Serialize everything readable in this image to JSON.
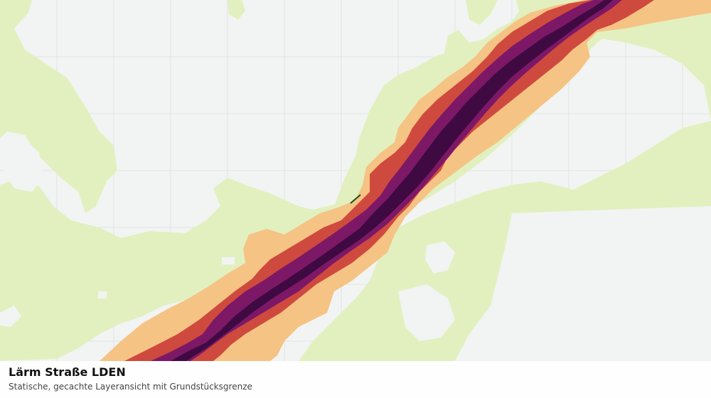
{
  "caption": {
    "title": "Lärm Straße LDEN",
    "subtitle": "Statische, gecachte Layeransicht mit Grundstücksgrenze"
  },
  "colors": {
    "background": "#f2f4f3",
    "grid": "#dfe3e2",
    "landcover": "#e2f0c0",
    "noise_low": "#f5c384",
    "noise_mid": "#cf4a3e",
    "noise_high": "#7d1867",
    "noise_max": "#3f0a42",
    "parcel_boundary": "#1e4d14"
  },
  "noise_bands": [
    "noise_low",
    "noise_mid",
    "noise_high",
    "noise_max"
  ]
}
